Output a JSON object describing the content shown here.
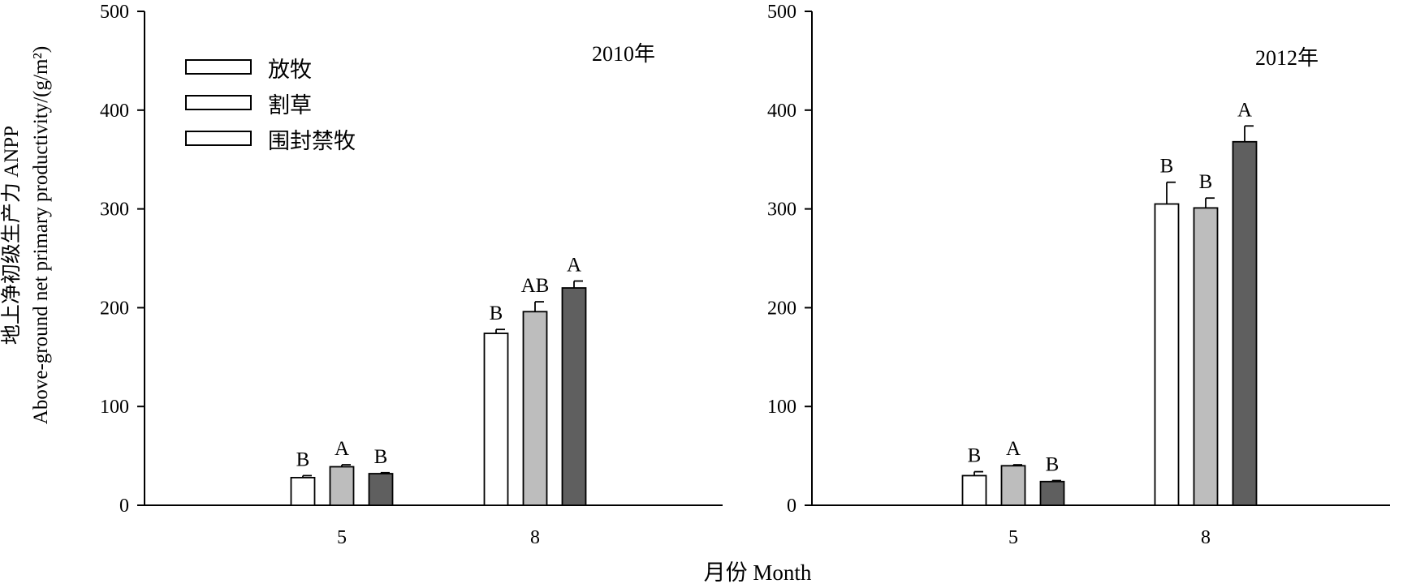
{
  "figure": {
    "xlabel": "月份 Month",
    "ylabel_cn": "地上净初级生产力 ANPP",
    "ylabel_en": "Above-ground net primary productivity/(g/m²)"
  },
  "legend": [
    {
      "name": "放牧",
      "color": "#ffffff"
    },
    {
      "name": "割草",
      "color": "#bdbdbd"
    },
    {
      "name": "围封禁牧",
      "color": "#5f5f5f"
    }
  ],
  "chart_data": [
    {
      "type": "bar",
      "panel_label": "2010年",
      "categories": [
        "5",
        "8"
      ],
      "ylim": [
        0,
        500
      ],
      "yticks": [
        0,
        100,
        200,
        300,
        400,
        500
      ],
      "series": [
        {
          "name": "放牧",
          "values": [
            28,
            174
          ],
          "errors": [
            2,
            4
          ],
          "letters": [
            "B",
            "B"
          ]
        },
        {
          "name": "割草",
          "values": [
            39,
            196
          ],
          "errors": [
            2,
            10
          ],
          "letters": [
            "A",
            "AB"
          ]
        },
        {
          "name": "围封禁牧",
          "values": [
            32,
            220
          ],
          "errors": [
            1,
            7
          ],
          "letters": [
            "B",
            "A"
          ]
        }
      ],
      "legend": "top-left",
      "grid": false
    },
    {
      "type": "bar",
      "panel_label": "2012年",
      "categories": [
        "5",
        "8"
      ],
      "ylim": [
        0,
        500
      ],
      "yticks": [
        0,
        100,
        200,
        300,
        400,
        500
      ],
      "series": [
        {
          "name": "放牧",
          "values": [
            30,
            305
          ],
          "errors": [
            4,
            22
          ],
          "letters": [
            "B",
            "B"
          ]
        },
        {
          "name": "割草",
          "values": [
            40,
            301
          ],
          "errors": [
            1,
            10
          ],
          "letters": [
            "A",
            "B"
          ]
        },
        {
          "name": "围封禁牧",
          "values": [
            24,
            368
          ],
          "errors": [
            1,
            16
          ],
          "letters": [
            "B",
            "A"
          ]
        }
      ],
      "grid": false
    }
  ]
}
